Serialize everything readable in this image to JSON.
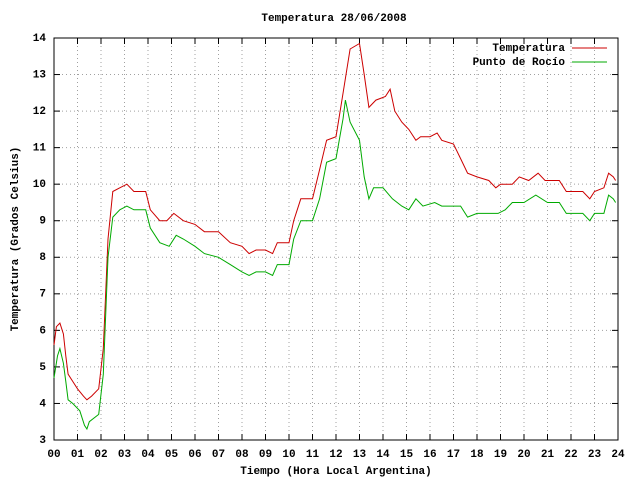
{
  "chart_data": {
    "type": "line",
    "title": "Temperatura 28/06/2008",
    "xlabel": "Tiempo (Hora Local Argentina)",
    "ylabel": "Temperatura (Grados Celsius)",
    "xlim": [
      0,
      24
    ],
    "ylim": [
      3,
      14
    ],
    "xticks": [
      {
        "value": 0,
        "label": "00"
      },
      {
        "value": 1,
        "label": "01"
      },
      {
        "value": 2,
        "label": "02"
      },
      {
        "value": 3,
        "label": "03"
      },
      {
        "value": 4,
        "label": "04"
      },
      {
        "value": 5,
        "label": "05"
      },
      {
        "value": 6,
        "label": "06"
      },
      {
        "value": 7,
        "label": "07"
      },
      {
        "value": 8,
        "label": "08"
      },
      {
        "value": 9,
        "label": "09"
      },
      10,
      11,
      12,
      13,
      14,
      15,
      16,
      17,
      18,
      19,
      20,
      21,
      22,
      23,
      24
    ],
    "yticks": [
      3,
      4,
      5,
      6,
      7,
      8,
      9,
      10,
      11,
      12,
      13,
      14
    ],
    "grid": true,
    "legend": "top-right",
    "series": [
      {
        "name": "Temperatura",
        "color": "#cc0000",
        "x": [
          0.0,
          0.1,
          0.25,
          0.4,
          0.5,
          0.6,
          0.8,
          1.0,
          1.25,
          1.4,
          1.6,
          1.9,
          2.1,
          2.3,
          2.5,
          2.8,
          3.1,
          3.4,
          3.9,
          4.1,
          4.5,
          4.8,
          5.1,
          5.5,
          6.0,
          6.4,
          7.0,
          7.5,
          8.0,
          8.3,
          8.6,
          9.0,
          9.3,
          9.5,
          10.0,
          10.2,
          10.5,
          11.0,
          11.3,
          11.6,
          12.0,
          12.3,
          12.6,
          13.0,
          13.2,
          13.4,
          13.7,
          14.1,
          14.3,
          14.5,
          14.8,
          15.1,
          15.4,
          15.6,
          16.0,
          16.3,
          16.5,
          17.0,
          17.3,
          17.6,
          18.0,
          18.5,
          18.8,
          19.0,
          19.5,
          19.8,
          20.2,
          20.6,
          20.9,
          21.5,
          21.8,
          22.5,
          22.8,
          23.0,
          23.4,
          23.6,
          23.8,
          23.9
        ],
        "values": [
          5.6,
          6.1,
          6.2,
          5.9,
          5.3,
          4.8,
          4.6,
          4.4,
          4.2,
          4.1,
          4.2,
          4.4,
          5.5,
          8.5,
          9.8,
          9.9,
          10.0,
          9.8,
          9.8,
          9.3,
          9.0,
          9.0,
          9.2,
          9.0,
          8.9,
          8.7,
          8.7,
          8.4,
          8.3,
          8.1,
          8.2,
          8.2,
          8.1,
          8.4,
          8.4,
          9.0,
          9.6,
          9.6,
          10.4,
          11.2,
          11.3,
          12.5,
          13.7,
          13.85,
          13.0,
          12.1,
          12.3,
          12.4,
          12.6,
          12.0,
          11.7,
          11.5,
          11.2,
          11.3,
          11.3,
          11.4,
          11.2,
          11.1,
          10.7,
          10.3,
          10.2,
          10.1,
          9.9,
          10.0,
          10.0,
          10.2,
          10.1,
          10.3,
          10.1,
          10.1,
          9.8,
          9.8,
          9.6,
          9.8,
          9.9,
          10.3,
          10.2,
          10.1
        ]
      },
      {
        "name": "Punto de Rocío",
        "color": "#00aa00",
        "x": [
          0.0,
          0.15,
          0.25,
          0.4,
          0.5,
          0.6,
          0.8,
          1.1,
          1.3,
          1.4,
          1.5,
          1.9,
          2.1,
          2.3,
          2.5,
          2.8,
          3.1,
          3.4,
          3.9,
          4.1,
          4.5,
          4.9,
          5.2,
          5.5,
          6.0,
          6.4,
          7.0,
          7.5,
          8.0,
          8.3,
          8.6,
          9.0,
          9.3,
          9.5,
          10.0,
          10.2,
          10.5,
          11.0,
          11.3,
          11.6,
          12.0,
          12.3,
          12.4,
          12.6,
          13.0,
          13.2,
          13.4,
          13.6,
          14.0,
          14.4,
          14.8,
          15.1,
          15.4,
          15.7,
          16.2,
          16.5,
          17.0,
          17.3,
          17.6,
          18.0,
          18.5,
          18.9,
          19.2,
          19.5,
          20.0,
          20.5,
          21.0,
          21.5,
          21.8,
          22.5,
          22.8,
          23.0,
          23.4,
          23.6,
          23.8,
          23.9
        ],
        "values": [
          4.7,
          5.3,
          5.5,
          5.1,
          4.6,
          4.1,
          4.0,
          3.8,
          3.4,
          3.3,
          3.5,
          3.7,
          4.8,
          8.0,
          9.1,
          9.3,
          9.4,
          9.3,
          9.3,
          8.8,
          8.4,
          8.3,
          8.6,
          8.5,
          8.3,
          8.1,
          8.0,
          7.8,
          7.6,
          7.5,
          7.6,
          7.6,
          7.5,
          7.8,
          7.8,
          8.5,
          9.0,
          9.0,
          9.6,
          10.6,
          10.7,
          11.8,
          12.3,
          11.7,
          11.2,
          10.2,
          9.6,
          9.9,
          9.9,
          9.6,
          9.4,
          9.3,
          9.6,
          9.4,
          9.5,
          9.4,
          9.4,
          9.4,
          9.1,
          9.2,
          9.2,
          9.2,
          9.3,
          9.5,
          9.5,
          9.7,
          9.5,
          9.5,
          9.2,
          9.2,
          9.0,
          9.2,
          9.2,
          9.7,
          9.6,
          9.5
        ]
      }
    ]
  }
}
